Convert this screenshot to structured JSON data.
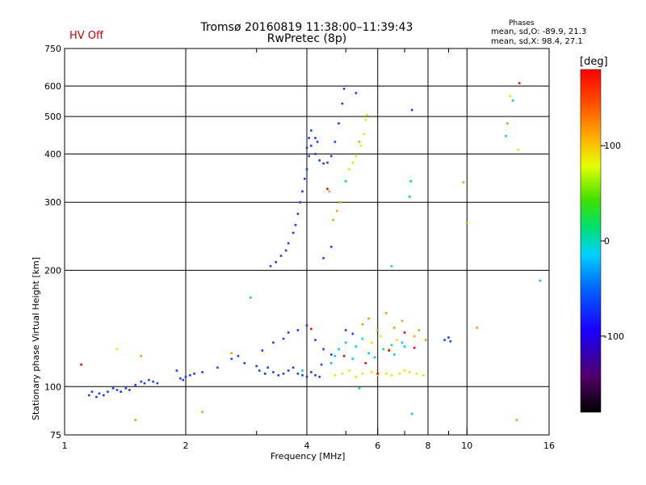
{
  "header": {
    "title_line1": "Tromsø 20160819 11:38:00–11:39:43",
    "title_line2": "RwPretec (8p)",
    "hv_status": "HV Off",
    "phases_title": "Phases",
    "stat_line1": "mean, sd,O: -89.9, 21.3",
    "stat_line2": "mean, sd,X:  98.4, 27.1"
  },
  "colorbar": {
    "unit": "[deg]",
    "ticks": [
      "100",
      "0",
      "-100"
    ],
    "tick_values": [
      100,
      0,
      -100
    ],
    "range": [
      -180,
      180
    ]
  },
  "colors": {
    "blue": "#1a3cff",
    "cyan": "#00c8ff",
    "yellow": "#e6e600",
    "orange": "#ff9a00",
    "red": "#ff0000"
  },
  "chart_data": {
    "type": "scatter",
    "xlabel": "Frequency [MHz]",
    "ylabel": "Stationary phase Virtual Height [km]",
    "xscale": "log",
    "yscale": "log",
    "xlim": [
      1,
      16
    ],
    "ylim": [
      75,
      750
    ],
    "xticks": [
      1,
      2,
      4,
      6,
      8,
      10,
      16
    ],
    "xtick_labels": [
      "1",
      "2",
      "4",
      "6",
      "8",
      "10",
      "16"
    ],
    "xminor": [
      3,
      5,
      7,
      9
    ],
    "yticks": [
      75,
      100,
      200,
      300,
      400,
      500,
      600,
      750
    ],
    "ytick_labels": [
      "75",
      "100",
      "200",
      "300",
      "400",
      "500",
      "600",
      "750"
    ],
    "grid": true,
    "colorbar_label": "[deg]",
    "series": [
      {
        "color": "#1a3cff",
        "points": [
          [
            1.15,
            95
          ],
          [
            1.17,
            97
          ],
          [
            1.2,
            94
          ],
          [
            1.22,
            96
          ],
          [
            1.25,
            95
          ],
          [
            1.28,
            97
          ],
          [
            1.32,
            99
          ],
          [
            1.35,
            98
          ],
          [
            1.38,
            97
          ],
          [
            1.42,
            99
          ],
          [
            1.45,
            98
          ],
          [
            1.5,
            101
          ],
          [
            1.55,
            103
          ],
          [
            1.58,
            102
          ],
          [
            1.62,
            104
          ],
          [
            1.66,
            103
          ],
          [
            1.7,
            102
          ],
          [
            1.9,
            110
          ],
          [
            1.94,
            105
          ],
          [
            1.97,
            104
          ],
          [
            2.0,
            106
          ],
          [
            2.05,
            107
          ],
          [
            2.1,
            108
          ],
          [
            2.2,
            109
          ],
          [
            2.4,
            112
          ],
          [
            2.6,
            118
          ],
          [
            2.7,
            120
          ],
          [
            2.8,
            115
          ],
          [
            3.0,
            113
          ],
          [
            3.05,
            110
          ],
          [
            3.15,
            108
          ],
          [
            3.2,
            112
          ],
          [
            3.3,
            109
          ],
          [
            3.4,
            107
          ],
          [
            3.5,
            108
          ],
          [
            3.6,
            110
          ],
          [
            3.7,
            112
          ],
          [
            3.8,
            108
          ],
          [
            3.9,
            107
          ],
          [
            4.0,
            106
          ],
          [
            4.1,
            109
          ],
          [
            4.2,
            107
          ],
          [
            4.3,
            106
          ],
          [
            4.35,
            114
          ],
          [
            3.1,
            124
          ],
          [
            3.3,
            130
          ],
          [
            3.5,
            133
          ],
          [
            3.6,
            138
          ],
          [
            3.8,
            140
          ],
          [
            4.0,
            144
          ],
          [
            4.2,
            132
          ],
          [
            4.4,
            125
          ],
          [
            4.6,
            121
          ],
          [
            5.0,
            140
          ],
          [
            5.2,
            137
          ],
          [
            3.25,
            205
          ],
          [
            3.35,
            210
          ],
          [
            3.45,
            218
          ],
          [
            3.55,
            225
          ],
          [
            3.6,
            235
          ],
          [
            3.7,
            250
          ],
          [
            3.75,
            262
          ],
          [
            3.8,
            280
          ],
          [
            3.85,
            300
          ],
          [
            3.9,
            320
          ],
          [
            3.95,
            345
          ],
          [
            4.0,
            365
          ],
          [
            4.05,
            395
          ],
          [
            4.1,
            420
          ],
          [
            4.05,
            440
          ],
          [
            4.2,
            400
          ],
          [
            4.3,
            385
          ],
          [
            4.4,
            378
          ],
          [
            4.5,
            380
          ],
          [
            4.6,
            395
          ],
          [
            4.7,
            430
          ],
          [
            4.8,
            480
          ],
          [
            4.9,
            540
          ],
          [
            4.95,
            590
          ],
          [
            4.1,
            460
          ],
          [
            4.2,
            440
          ],
          [
            4.25,
            430
          ],
          [
            4.0,
            415
          ],
          [
            7.3,
            520
          ],
          [
            5.3,
            575
          ],
          [
            4.4,
            215
          ],
          [
            4.6,
            230
          ],
          [
            8.8,
            132
          ],
          [
            9.0,
            134
          ],
          [
            9.1,
            131
          ]
        ]
      },
      {
        "color": "#00c8ff",
        "points": [
          [
            3.9,
            110
          ],
          [
            4.6,
            115
          ],
          [
            4.7,
            120
          ],
          [
            4.8,
            125
          ],
          [
            5.0,
            130
          ],
          [
            5.2,
            118
          ],
          [
            5.3,
            127
          ],
          [
            5.5,
            133
          ],
          [
            5.7,
            122
          ],
          [
            5.9,
            119
          ],
          [
            6.2,
            125
          ],
          [
            6.5,
            128
          ],
          [
            6.6,
            121
          ],
          [
            6.9,
            130
          ],
          [
            7.0,
            127
          ],
          [
            7.2,
            310
          ],
          [
            7.25,
            340
          ],
          [
            5.0,
            340
          ],
          [
            6.5,
            205
          ],
          [
            12.5,
            445
          ],
          [
            13.0,
            550
          ],
          [
            15.2,
            188
          ],
          [
            2.9,
            170
          ],
          [
            7.3,
            85
          ],
          [
            5.4,
            99
          ]
        ]
      },
      {
        "color": "#e6e600",
        "points": [
          [
            4.7,
            107
          ],
          [
            4.9,
            108
          ],
          [
            5.1,
            110
          ],
          [
            5.3,
            106
          ],
          [
            5.5,
            108
          ],
          [
            5.8,
            109
          ],
          [
            6.0,
            107
          ],
          [
            6.3,
            108
          ],
          [
            6.5,
            107
          ],
          [
            6.8,
            108
          ],
          [
            7.0,
            110
          ],
          [
            7.2,
            109
          ],
          [
            7.5,
            108
          ],
          [
            7.8,
            107
          ],
          [
            5.2,
            380
          ],
          [
            5.3,
            395
          ],
          [
            5.45,
            420
          ],
          [
            5.55,
            450
          ],
          [
            5.6,
            490
          ],
          [
            5.65,
            505
          ],
          [
            5.1,
            365
          ],
          [
            5.8,
            130
          ],
          [
            6.1,
            135
          ],
          [
            6.4,
            125
          ],
          [
            6.7,
            132
          ],
          [
            1.35,
            125
          ],
          [
            12.8,
            565
          ],
          [
            13.4,
            410
          ]
        ]
      },
      {
        "color": "#ff9a00",
        "points": [
          [
            4.65,
            270
          ],
          [
            4.75,
            285
          ],
          [
            4.85,
            300
          ],
          [
            4.55,
            320
          ],
          [
            5.5,
            145
          ],
          [
            5.7,
            150
          ],
          [
            6.0,
            140
          ],
          [
            6.3,
            155
          ],
          [
            6.6,
            142
          ],
          [
            6.9,
            148
          ],
          [
            7.4,
            135
          ],
          [
            7.6,
            140
          ],
          [
            7.9,
            132
          ],
          [
            9.8,
            338
          ],
          [
            10.6,
            142
          ],
          [
            1.5,
            82
          ],
          [
            2.2,
            86
          ],
          [
            12.6,
            480
          ],
          [
            13.3,
            82
          ],
          [
            10.0,
            265
          ],
          [
            1.55,
            120
          ],
          [
            5.4,
            430
          ],
          [
            2.6,
            122
          ]
        ]
      },
      {
        "color": "#ff0000",
        "points": [
          [
            4.5,
            325
          ],
          [
            4.95,
            120
          ],
          [
            6.0,
            108
          ],
          [
            6.4,
            124
          ],
          [
            7.0,
            138
          ],
          [
            7.4,
            126
          ],
          [
            13.5,
            610
          ],
          [
            1.1,
            114
          ],
          [
            4.1,
            141
          ],
          [
            5.6,
            115
          ]
        ]
      }
    ]
  }
}
